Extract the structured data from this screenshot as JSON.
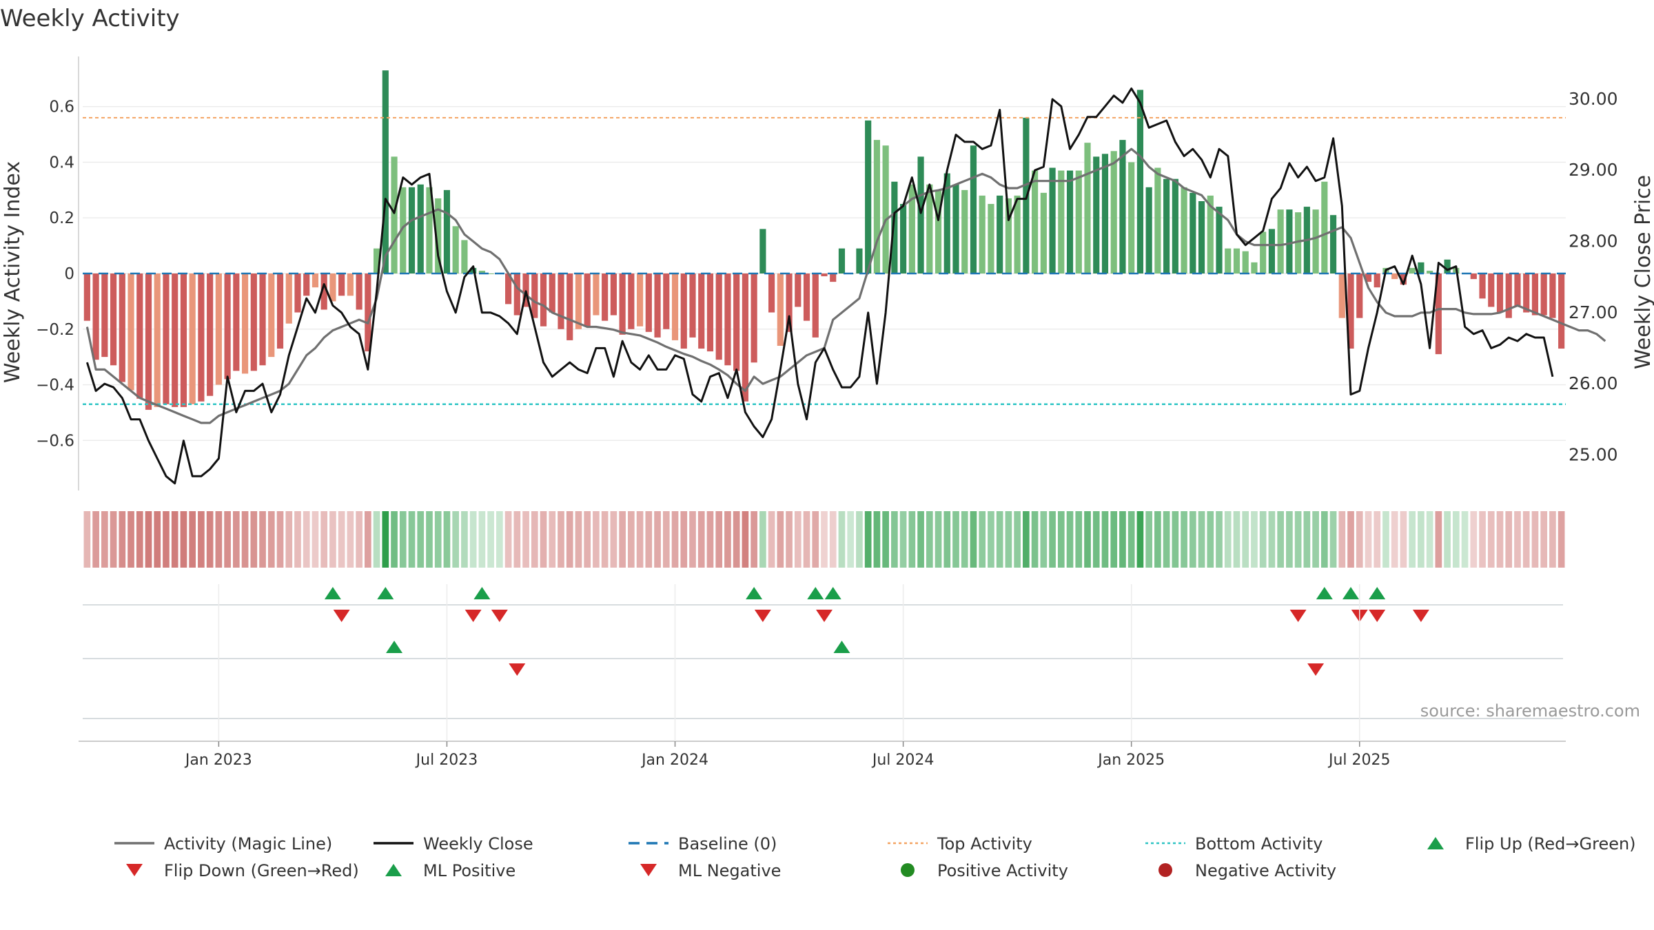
{
  "chart_data": {
    "type": "bar+line",
    "title": "Weekly Activity",
    "ylabel_left": "Weekly Activity Index",
    "ylabel_right": "Weekly Close Price",
    "left_ticks": [
      "0.6",
      "0.4",
      "0.2",
      "0",
      "−0.2",
      "−0.4",
      "−0.6"
    ],
    "left_tick_values": [
      0.6,
      0.4,
      0.2,
      0,
      -0.2,
      -0.4,
      -0.6
    ],
    "right_ticks": [
      "30.00",
      "29.00",
      "28.00",
      "27.00",
      "26.00",
      "25.00"
    ],
    "right_tick_values": [
      30,
      29,
      28,
      27,
      26,
      25
    ],
    "ylim_left": [
      -0.78,
      0.78
    ],
    "ylim_right": [
      24.5,
      30.6
    ],
    "x_labels": [
      "Jan 2023",
      "Jul 2023",
      "Jan 2024",
      "Jul 2024",
      "Jan 2025",
      "Jul 2025"
    ],
    "x_label_week_index": [
      15,
      41,
      67,
      93,
      119,
      145
    ],
    "top_activity": 0.56,
    "bottom_activity": -0.47,
    "baseline": 0,
    "activity": [
      -0.17,
      -0.31,
      -0.3,
      -0.33,
      -0.39,
      -0.42,
      -0.45,
      -0.49,
      -0.48,
      -0.47,
      -0.48,
      -0.48,
      -0.47,
      -0.46,
      -0.44,
      -0.4,
      -0.38,
      -0.35,
      -0.36,
      -0.35,
      -0.33,
      -0.3,
      -0.27,
      -0.18,
      -0.14,
      -0.08,
      -0.05,
      -0.13,
      -0.1,
      -0.08,
      -0.08,
      -0.13,
      -0.28,
      0.09,
      0.73,
      0.42,
      0.31,
      0.31,
      0.32,
      0.31,
      0.27,
      0.3,
      0.17,
      0.12,
      0.02,
      0.01,
      0.0,
      0.0,
      -0.11,
      -0.15,
      -0.12,
      -0.16,
      -0.19,
      -0.14,
      -0.2,
      -0.24,
      -0.2,
      -0.19,
      -0.15,
      -0.17,
      -0.15,
      -0.22,
      -0.2,
      -0.19,
      -0.21,
      -0.23,
      -0.2,
      -0.24,
      -0.27,
      -0.23,
      -0.27,
      -0.28,
      -0.31,
      -0.33,
      -0.35,
      -0.46,
      -0.32,
      0.16,
      -0.14,
      -0.26,
      -0.21,
      -0.12,
      -0.17,
      -0.23,
      -0.01,
      -0.03,
      0.09,
      0.0,
      0.09,
      0.55,
      0.48,
      0.46,
      0.33,
      0.25,
      0.32,
      0.42,
      0.32,
      0.3,
      0.36,
      0.32,
      0.3,
      0.46,
      0.28,
      0.25,
      0.28,
      0.27,
      0.28,
      0.56,
      0.37,
      0.29,
      0.38,
      0.37,
      0.37,
      0.37,
      0.47,
      0.42,
      0.43,
      0.44,
      0.48,
      0.4,
      0.66,
      0.31,
      0.38,
      0.34,
      0.34,
      0.31,
      0.29,
      0.26,
      0.28,
      0.24,
      0.09,
      0.09,
      0.08,
      0.04,
      0.15,
      0.16,
      0.23,
      0.23,
      0.22,
      0.24,
      0.23,
      0.33,
      0.21,
      -0.16,
      -0.27,
      -0.16,
      -0.03,
      -0.05,
      0.02,
      -0.02,
      -0.04,
      0.02,
      0.04,
      0.01,
      -0.29,
      0.05,
      0.02,
      0.0,
      -0.02,
      -0.09,
      -0.12,
      -0.14,
      -0.16,
      -0.12,
      -0.14,
      -0.15,
      -0.15,
      -0.16,
      -0.27
    ],
    "activity_intensity": [
      "medium",
      "medium",
      "strong",
      "strong",
      "medium",
      "light",
      "strong",
      "medium",
      "light",
      "medium",
      "medium",
      "strong",
      "light",
      "strong",
      "medium",
      "light",
      "strong",
      "medium",
      "light",
      "strong",
      "medium",
      "light",
      "medium",
      "light",
      "medium",
      "strong",
      "light",
      "medium",
      "light",
      "medium",
      "light",
      "medium",
      "strong",
      "medium",
      "strong",
      "light",
      "light",
      "strong",
      "strong",
      "light",
      "light",
      "strong",
      "light",
      "light",
      "strong",
      "light",
      "light",
      "strong",
      "strong",
      "medium",
      "medium",
      "medium",
      "strong",
      "medium",
      "strong",
      "medium",
      "light",
      "medium",
      "light",
      "strong",
      "medium",
      "strong",
      "medium",
      "light",
      "medium",
      "strong",
      "medium",
      "light",
      "strong",
      "medium",
      "strong",
      "medium",
      "strong",
      "medium",
      "strong",
      "strong",
      "medium",
      "strong",
      "medium",
      "light",
      "strong",
      "medium",
      "strong",
      "medium",
      "strong",
      "strong",
      "strong",
      "light",
      "strong",
      "strong",
      "light",
      "light",
      "strong",
      "strong",
      "light",
      "strong",
      "light",
      "light",
      "strong",
      "strong",
      "light",
      "strong",
      "light",
      "light",
      "strong",
      "light",
      "light",
      "strong",
      "light",
      "light",
      "strong",
      "light",
      "strong",
      "light",
      "light",
      "strong",
      "strong",
      "light",
      "strong",
      "light",
      "strong",
      "strong",
      "light",
      "strong",
      "strong",
      "light",
      "strong",
      "strong",
      "light",
      "strong",
      "light",
      "light",
      "light",
      "light",
      "light",
      "strong",
      "light",
      "strong",
      "light",
      "strong",
      "light",
      "light",
      "strong",
      "light",
      "medium",
      "medium",
      "strong",
      "medium",
      "light",
      "light",
      "strong",
      "light",
      "strong",
      "light",
      "medium",
      "strong",
      "light",
      "light",
      "medium",
      "medium",
      "medium",
      "strong",
      "strong",
      "strong",
      "medium",
      "medium",
      "strong",
      "medium",
      "medium"
    ],
    "magic_line": [
      26.8,
      26.2,
      26.2,
      26.1,
      26.0,
      25.9,
      25.8,
      25.75,
      25.7,
      25.65,
      25.6,
      25.55,
      25.5,
      25.45,
      25.45,
      25.55,
      25.6,
      25.65,
      25.7,
      25.75,
      25.8,
      25.85,
      25.9,
      26.0,
      26.2,
      26.4,
      26.5,
      26.65,
      26.75,
      26.8,
      26.85,
      26.9,
      26.85,
      27.2,
      27.8,
      28.0,
      28.2,
      28.3,
      28.35,
      28.4,
      28.45,
      28.4,
      28.3,
      28.1,
      28.0,
      27.9,
      27.85,
      27.75,
      27.55,
      27.35,
      27.25,
      27.15,
      27.1,
      27.0,
      26.95,
      26.9,
      26.85,
      26.8,
      26.8,
      26.78,
      26.76,
      26.72,
      26.7,
      26.68,
      26.63,
      26.58,
      26.52,
      26.47,
      26.42,
      26.38,
      26.32,
      26.27,
      26.2,
      26.12,
      26.0,
      25.9,
      26.1,
      26.0,
      26.05,
      26.1,
      26.2,
      26.3,
      26.4,
      26.45,
      26.5,
      26.9,
      27.0,
      27.1,
      27.2,
      27.6,
      28.0,
      28.3,
      28.4,
      28.5,
      28.6,
      28.65,
      28.7,
      28.72,
      28.75,
      28.8,
      28.85,
      28.9,
      28.95,
      28.9,
      28.8,
      28.75,
      28.75,
      28.8,
      28.85,
      28.85,
      28.85,
      28.85,
      28.85,
      28.9,
      28.95,
      29.0,
      29.05,
      29.1,
      29.2,
      29.3,
      29.2,
      29.05,
      28.95,
      28.9,
      28.85,
      28.75,
      28.7,
      28.65,
      28.5,
      28.4,
      28.3,
      28.1,
      28.0,
      27.95,
      27.95,
      27.95,
      27.95,
      27.97,
      28.0,
      28.02,
      28.05,
      28.1,
      28.15,
      28.2,
      28.05,
      27.7,
      27.35,
      27.15,
      27.0,
      26.95,
      26.95,
      26.95,
      27.0,
      27.0,
      27.05,
      27.05,
      27.05,
      27.0,
      26.98,
      26.98,
      26.98,
      27.0,
      27.05,
      27.1,
      27.05,
      27.0,
      26.95,
      26.9,
      26.85,
      26.8,
      26.75,
      26.75,
      26.7,
      26.6
    ],
    "weekly_close": [
      26.3,
      25.9,
      26.0,
      25.95,
      25.8,
      25.5,
      25.5,
      25.2,
      24.95,
      24.7,
      24.6,
      25.2,
      24.7,
      24.7,
      24.8,
      24.95,
      26.1,
      25.6,
      25.9,
      25.9,
      26.0,
      25.6,
      25.85,
      26.4,
      26.8,
      27.2,
      27.0,
      27.4,
      27.1,
      27.0,
      26.8,
      26.7,
      26.2,
      27.3,
      28.6,
      28.4,
      28.9,
      28.8,
      28.9,
      28.95,
      27.8,
      27.3,
      27.0,
      27.5,
      27.65,
      27.0,
      27.0,
      26.95,
      26.85,
      26.7,
      27.3,
      26.8,
      26.3,
      26.1,
      26.2,
      26.3,
      26.2,
      26.15,
      26.5,
      26.5,
      26.1,
      26.6,
      26.3,
      26.2,
      26.4,
      26.2,
      26.2,
      26.4,
      26.35,
      25.85,
      25.75,
      26.1,
      26.15,
      25.8,
      26.2,
      25.6,
      25.4,
      25.25,
      25.5,
      26.2,
      26.95,
      26.0,
      25.5,
      26.3,
      26.5,
      26.2,
      25.95,
      25.95,
      26.1,
      27.0,
      26.0,
      27.0,
      28.4,
      28.5,
      28.9,
      28.4,
      28.8,
      28.3,
      29.0,
      29.5,
      29.4,
      29.4,
      29.3,
      29.35,
      29.85,
      28.3,
      28.6,
      28.6,
      29.0,
      29.05,
      30.0,
      29.9,
      29.3,
      29.5,
      29.75,
      29.75,
      29.9,
      30.05,
      29.95,
      30.15,
      29.95,
      29.6,
      29.65,
      29.7,
      29.4,
      29.2,
      29.3,
      29.15,
      28.9,
      29.3,
      29.2,
      28.1,
      27.95,
      28.05,
      28.15,
      28.6,
      28.75,
      29.1,
      28.9,
      29.05,
      28.85,
      28.9,
      29.45,
      28.5,
      25.85,
      25.9,
      26.5,
      27.0,
      27.6,
      27.65,
      27.4,
      27.8,
      27.4,
      26.5,
      27.7,
      27.6,
      27.65,
      26.8,
      26.7,
      26.75,
      26.5,
      26.55,
      26.65,
      26.6,
      26.7,
      26.65,
      26.65,
      26.1
    ],
    "strip_order": [
      "Flip Up (Red→Green)",
      "Flip Down (Green→Red)",
      "ML Positive",
      "ML Negative",
      "Positive Activity",
      "Negative Activity"
    ],
    "signals": {
      "flip_up": [
        28,
        34,
        45,
        76,
        83,
        85,
        141,
        144,
        147
      ],
      "flip_down": [
        29,
        44,
        47,
        77,
        84,
        138,
        145,
        147,
        152
      ],
      "ml_positive": [
        35,
        86
      ],
      "ml_negative": [
        49,
        140
      ],
      "positive_activity": [],
      "negative_activity": []
    },
    "colors": {
      "pos_strong": "#2e8b57",
      "pos_light": "#7dbf7d",
      "neg_medium": "#cd5c5c",
      "neg_light": "#e9967a",
      "magic_line": "#707070",
      "weekly_close": "#111111",
      "baseline": "#1f77b4",
      "top_activity": "#f4a261",
      "bottom_activity": "#2ec4c4",
      "marker_up": "#1a9e4a",
      "marker_down": "#d62828",
      "dot_pos": "#228b22",
      "dot_neg": "#b22222"
    },
    "legend": [
      {
        "label": "Activity (Magic Line)",
        "kind": "line",
        "color": "#707070",
        "dash": "solid"
      },
      {
        "label": "Weekly Close",
        "kind": "line",
        "color": "#111111",
        "dash": "solid"
      },
      {
        "label": "Baseline (0)",
        "kind": "line",
        "color": "#1f77b4",
        "dash": "long"
      },
      {
        "label": "Top Activity",
        "kind": "line",
        "color": "#f4a261",
        "dash": "dot"
      },
      {
        "label": "Bottom Activity",
        "kind": "line",
        "color": "#2ec4c4",
        "dash": "dot"
      },
      {
        "label": "Flip Up (Red→Green)",
        "kind": "tri-up",
        "color": "#1a9e4a"
      },
      {
        "label": "Flip Down (Green→Red)",
        "kind": "tri-down",
        "color": "#d62828"
      },
      {
        "label": "ML Positive",
        "kind": "tri-up",
        "color": "#1a9e4a"
      },
      {
        "label": "ML Negative",
        "kind": "tri-down",
        "color": "#d62828"
      },
      {
        "label": "Positive Activity",
        "kind": "dot",
        "color": "#228b22"
      },
      {
        "label": "Negative Activity",
        "kind": "dot",
        "color": "#b22222"
      }
    ],
    "source": "source: sharemaestro.com"
  }
}
